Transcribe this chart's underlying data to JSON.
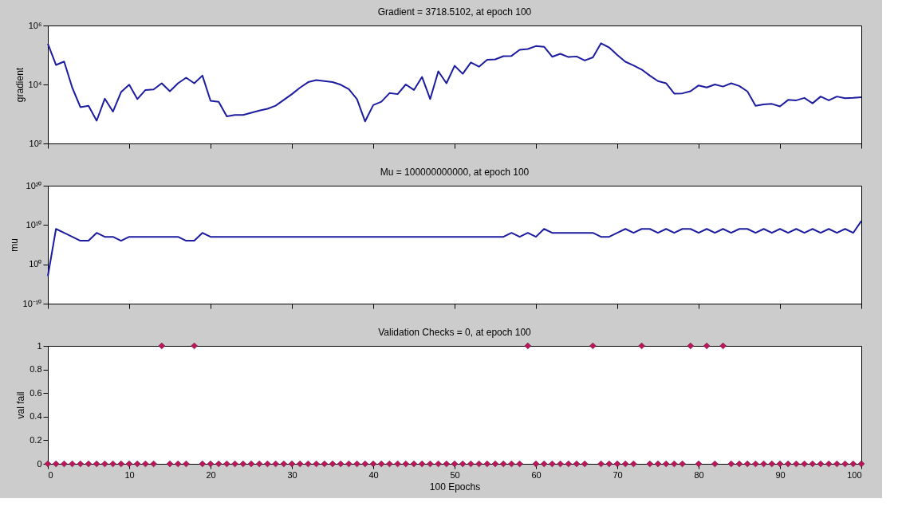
{
  "chart_data": [
    {
      "type": "line",
      "title": "Gradient = 3718.5102, at epoch 100",
      "ylabel": "gradient",
      "log": "y",
      "grid": false,
      "tick_labels": "y",
      "marker": "none",
      "line_style": "solid",
      "x": [
        0,
        1,
        2,
        3,
        4,
        5,
        6,
        7,
        8,
        9,
        10,
        11,
        12,
        13,
        14,
        15,
        16,
        17,
        18,
        19,
        20,
        21,
        22,
        23,
        24,
        25,
        26,
        27,
        28,
        29,
        30,
        31,
        32,
        33,
        34,
        35,
        36,
        37,
        38,
        39,
        40,
        41,
        42,
        43,
        44,
        45,
        46,
        47,
        48,
        49,
        50,
        51,
        52,
        53,
        54,
        55,
        56,
        57,
        58,
        59,
        60,
        61,
        62,
        63,
        64,
        65,
        66,
        67,
        68,
        69,
        70,
        71,
        72,
        73,
        74,
        75,
        76,
        77,
        78,
        79,
        80,
        81,
        82,
        83,
        84,
        85,
        86,
        87,
        88,
        89,
        90,
        91,
        92,
        93,
        94,
        95,
        96,
        97,
        98,
        99,
        100
      ],
      "series": [
        {
          "color": "#1c1ca0",
          "values": [
            240000,
            46000,
            60000,
            7800,
            1700,
            1900,
            590,
            3300,
            1200,
            5500,
            9800,
            3200,
            6500,
            6800,
            11000,
            5900,
            11000,
            17000,
            11000,
            20000,
            2800,
            2600,
            830,
            930,
            930,
            1100,
            1300,
            1500,
            1900,
            3000,
            4700,
            7800,
            12000,
            14000,
            13000,
            12000,
            9800,
            6900,
            3200,
            560,
            2000,
            2600,
            5100,
            4700,
            10000,
            6500,
            18000,
            3200,
            28000,
            11000,
            43000,
            23000,
            56000,
            40000,
            69000,
            71000,
            91000,
            93000,
            150000,
            160000,
            200000,
            190000,
            87000,
            110000,
            85000,
            89000,
            65000,
            83000,
            250000,
            180000,
            100000,
            59000,
            44000,
            32000,
            20000,
            13000,
            11000,
            4900,
            5000,
            5900,
            9300,
            7900,
            10000,
            8500,
            11000,
            8900,
            5800,
            1900,
            2100,
            2200,
            1800,
            3000,
            2900,
            3500,
            2300,
            3900,
            2900,
            3900,
            3400,
            3500,
            3718.5102
          ]
        }
      ],
      "xlim": [
        0,
        100
      ],
      "xticks": [
        0,
        10,
        20,
        30,
        40,
        50,
        60,
        70,
        80,
        90,
        100
      ],
      "ylim": [
        100,
        1000000
      ],
      "yticks": [
        {
          "value": 100,
          "label": "10²"
        },
        {
          "value": 10000,
          "label": "10⁴"
        },
        {
          "value": 1000000,
          "label": "10⁶"
        }
      ]
    },
    {
      "type": "line",
      "title": "Mu = 100000000000, at epoch 100",
      "ylabel": "mu",
      "log": "y",
      "grid": false,
      "tick_labels": "y",
      "marker": "none",
      "line_style": "solid",
      "x": [
        0,
        1,
        2,
        3,
        4,
        5,
        6,
        7,
        8,
        9,
        10,
        11,
        12,
        13,
        14,
        15,
        16,
        17,
        18,
        19,
        20,
        21,
        22,
        23,
        24,
        25,
        26,
        27,
        28,
        29,
        30,
        31,
        32,
        33,
        34,
        35,
        36,
        37,
        38,
        39,
        40,
        41,
        42,
        43,
        44,
        45,
        46,
        47,
        48,
        49,
        50,
        51,
        52,
        53,
        54,
        55,
        56,
        57,
        58,
        59,
        60,
        61,
        62,
        63,
        64,
        65,
        66,
        67,
        68,
        69,
        70,
        71,
        72,
        73,
        74,
        75,
        76,
        77,
        78,
        79,
        80,
        81,
        82,
        83,
        84,
        85,
        86,
        87,
        88,
        89,
        90,
        91,
        92,
        93,
        94,
        95,
        96,
        97,
        98,
        99,
        100
      ],
      "series": [
        {
          "color": "#1c1ca0",
          "values": [
            0.001,
            1000000000.0,
            100000000.0,
            10000000.0,
            1000000.0,
            1000000.0,
            100000000.0,
            10000000.0,
            10000000.0,
            1000000.0,
            10000000.0,
            10000000.0,
            10000000.0,
            10000000.0,
            10000000.0,
            10000000.0,
            10000000.0,
            1000000.0,
            1000000.0,
            100000000.0,
            10000000.0,
            10000000.0,
            10000000.0,
            10000000.0,
            10000000.0,
            10000000.0,
            10000000.0,
            10000000.0,
            10000000.0,
            10000000.0,
            10000000.0,
            10000000.0,
            10000000.0,
            10000000.0,
            10000000.0,
            10000000.0,
            10000000.0,
            10000000.0,
            10000000.0,
            10000000.0,
            10000000.0,
            10000000.0,
            10000000.0,
            10000000.0,
            10000000.0,
            10000000.0,
            10000000.0,
            10000000.0,
            10000000.0,
            10000000.0,
            10000000.0,
            10000000.0,
            10000000.0,
            10000000.0,
            10000000.0,
            10000000.0,
            10000000.0,
            100000000.0,
            10000000.0,
            100000000.0,
            10000000.0,
            1000000000.0,
            100000000.0,
            100000000.0,
            100000000.0,
            100000000.0,
            100000000.0,
            100000000.0,
            10000000.0,
            10000000.0,
            100000000.0,
            1000000000.0,
            100000000.0,
            1000000000.0,
            1000000000.0,
            100000000.0,
            1000000000.0,
            100000000.0,
            1000000000.0,
            1000000000.0,
            100000000.0,
            1000000000.0,
            100000000.0,
            1000000000.0,
            100000000.0,
            1000000000.0,
            1000000000.0,
            100000000.0,
            1000000000.0,
            100000000.0,
            1000000000.0,
            100000000.0,
            1000000000.0,
            100000000.0,
            1000000000.0,
            100000000.0,
            1000000000.0,
            100000000.0,
            1000000000.0,
            100000000.0,
            100000000000.0
          ]
        }
      ],
      "xlim": [
        0,
        100
      ],
      "xticks": [
        0,
        10,
        20,
        30,
        40,
        50,
        60,
        70,
        80,
        90,
        100
      ],
      "ylim": [
        1e-10,
        1e+20
      ],
      "yticks": [
        {
          "value": 1e-10,
          "label": "10⁻¹⁰"
        },
        {
          "value": 1,
          "label": "10⁰"
        },
        {
          "value": 10000000000.0,
          "label": "10¹⁰"
        },
        {
          "value": 1e+20,
          "label": "10²⁰"
        }
      ]
    },
    {
      "type": "scatter",
      "title": "Validation Checks = 0, at epoch 100",
      "xlabel": "100 Epochs",
      "ylabel": "val fail",
      "grid": false,
      "marker": "diamond",
      "x": [
        0,
        1,
        2,
        3,
        4,
        5,
        6,
        7,
        8,
        9,
        10,
        11,
        12,
        13,
        14,
        15,
        16,
        17,
        18,
        19,
        20,
        21,
        22,
        23,
        24,
        25,
        26,
        27,
        28,
        29,
        30,
        31,
        32,
        33,
        34,
        35,
        36,
        37,
        38,
        39,
        40,
        41,
        42,
        43,
        44,
        45,
        46,
        47,
        48,
        49,
        50,
        51,
        52,
        53,
        54,
        55,
        56,
        57,
        58,
        59,
        60,
        61,
        62,
        63,
        64,
        65,
        66,
        67,
        68,
        69,
        70,
        71,
        72,
        73,
        74,
        75,
        76,
        77,
        78,
        79,
        80,
        81,
        82,
        83,
        84,
        85,
        86,
        87,
        88,
        89,
        90,
        91,
        92,
        93,
        94,
        95,
        96,
        97,
        98,
        99,
        100
      ],
      "series": [
        {
          "color": "#c0135c",
          "values": [
            0,
            0,
            0,
            0,
            0,
            0,
            0,
            0,
            0,
            0,
            0,
            0,
            0,
            0,
            1,
            0,
            0,
            0,
            1,
            0,
            0,
            0,
            0,
            0,
            0,
            0,
            0,
            0,
            0,
            0,
            0,
            0,
            0,
            0,
            0,
            0,
            0,
            0,
            0,
            0,
            0,
            0,
            0,
            0,
            0,
            0,
            0,
            0,
            0,
            0,
            0,
            0,
            0,
            0,
            0,
            0,
            0,
            0,
            0,
            1,
            0,
            0,
            0,
            0,
            0,
            0,
            0,
            1,
            0,
            0,
            0,
            0,
            0,
            1,
            0,
            0,
            0,
            0,
            0,
            1,
            0,
            1,
            0,
            1,
            0,
            0,
            0,
            0,
            0,
            0,
            0,
            0,
            0,
            0,
            0,
            0,
            0,
            0,
            0,
            0,
            0
          ]
        }
      ],
      "xlim": [
        0,
        100
      ],
      "xticks": [
        0,
        10,
        20,
        30,
        40,
        50,
        60,
        70,
        80,
        90,
        100
      ],
      "ylim": [
        0,
        1
      ],
      "yticks": [
        0,
        0.2,
        0.4,
        0.6,
        0.8,
        1
      ]
    }
  ]
}
